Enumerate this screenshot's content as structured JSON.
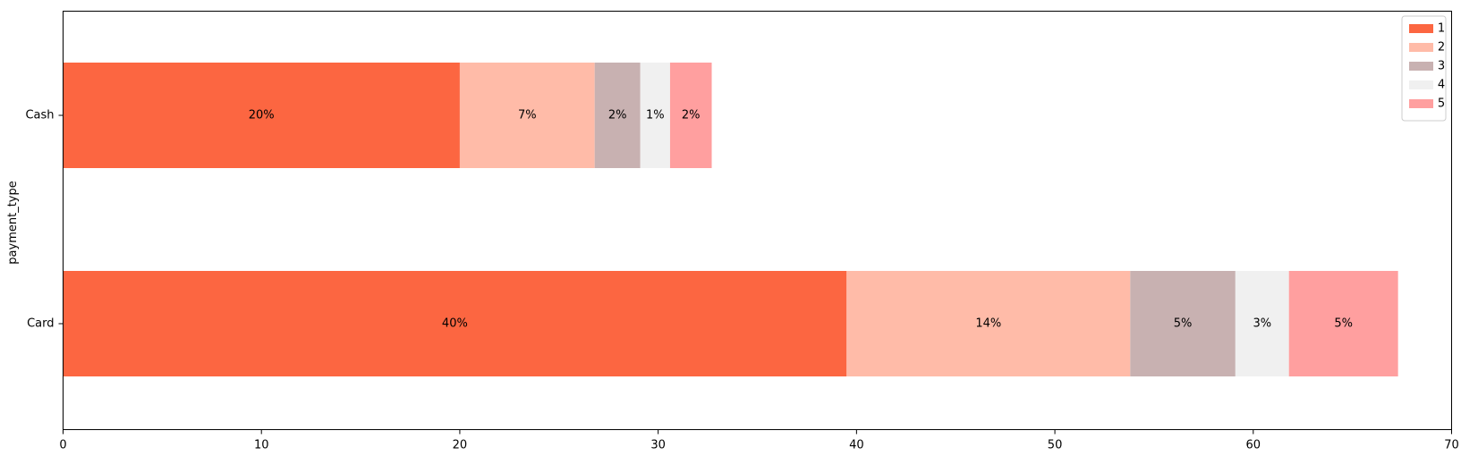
{
  "chart_data": {
    "type": "bar",
    "orientation": "horizontal",
    "stacked": true,
    "categories": [
      "Card",
      "Cash"
    ],
    "ylabel": "payment_type",
    "xlabel": "",
    "xlim": [
      0,
      70
    ],
    "xticks": [
      0,
      10,
      20,
      30,
      40,
      50,
      60,
      70
    ],
    "grid": false,
    "legend": {
      "placement": "top-right"
    },
    "series": [
      {
        "name": "1",
        "color": "#FC6641",
        "values": [
          39.5,
          20.0
        ],
        "labels": [
          "40%",
          "20%"
        ]
      },
      {
        "name": "2",
        "color": "#FFBBA8",
        "values": [
          14.3,
          6.8
        ],
        "labels": [
          "14%",
          "7%"
        ]
      },
      {
        "name": "3",
        "color": "#C8B1B1",
        "values": [
          5.3,
          2.3
        ],
        "labels": [
          "5%",
          "2%"
        ]
      },
      {
        "name": "4",
        "color": "#F0F0F0",
        "values": [
          2.7,
          1.5
        ],
        "labels": [
          "3%",
          "1%"
        ]
      },
      {
        "name": "5",
        "color": "#FF9F9F",
        "values": [
          5.5,
          2.1
        ],
        "labels": [
          "5%",
          "2%"
        ]
      }
    ]
  }
}
